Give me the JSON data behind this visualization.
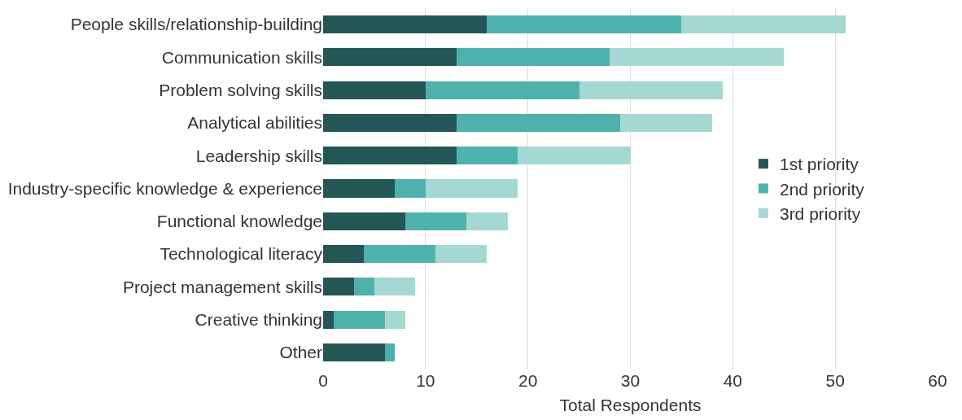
{
  "chart_data": {
    "type": "bar",
    "orientation": "horizontal",
    "stacked": true,
    "xlabel": "Total Respondents",
    "categories": [
      "People skills/relationship-building",
      "Communication skills",
      "Problem solving skills",
      "Analytical abilities",
      "Leadership skills",
      "Industry-specific knowledge & experience",
      "Functional knowledge",
      "Technological literacy",
      "Project management skills",
      "Creative thinking",
      "Other"
    ],
    "series": [
      {
        "name": "1st priority",
        "color": "#235654",
        "values": [
          16,
          13,
          10,
          13,
          13,
          7,
          8,
          4,
          3,
          1,
          6
        ]
      },
      {
        "name": "2nd priority",
        "color": "#4fb1ad",
        "values": [
          19,
          15,
          15,
          16,
          6,
          3,
          6,
          7,
          2,
          5,
          1
        ]
      },
      {
        "name": "3rd priority",
        "color": "#a5d8d3",
        "values": [
          16,
          17,
          14,
          9,
          11,
          9,
          4,
          5,
          4,
          2,
          0
        ]
      }
    ],
    "xlim": [
      0,
      60
    ],
    "xticks": [
      0,
      10,
      20,
      30,
      40,
      50,
      60
    ],
    "grid": "x",
    "legend": "right"
  }
}
